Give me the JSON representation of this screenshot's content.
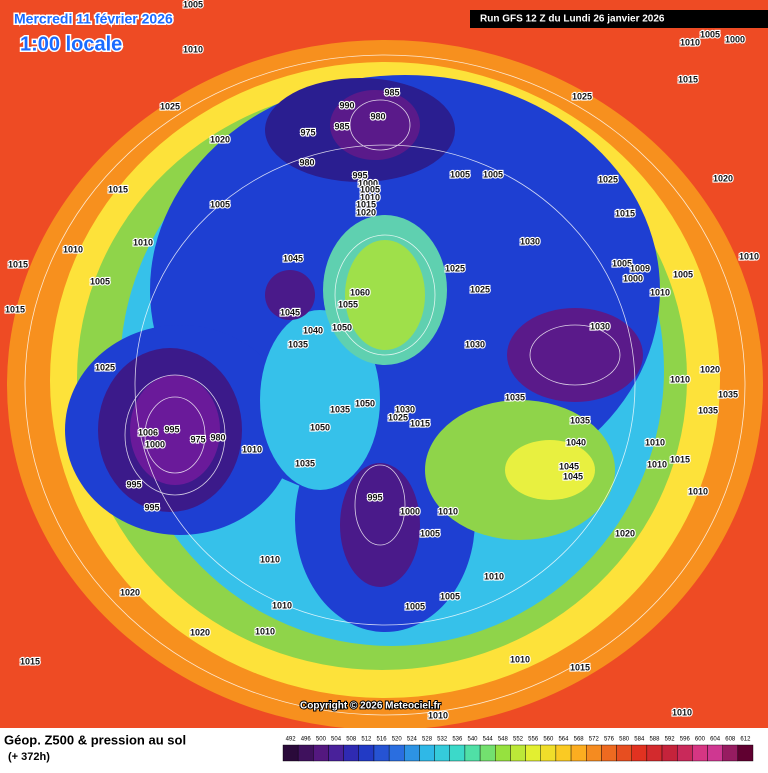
{
  "header": {
    "date": "Mercredi 11 février 2026",
    "time": "1:00 locale",
    "run": "Run GFS 12 Z du Lundi 26 janvier 2026"
  },
  "map": {
    "copyright": "Copyright © 2026 Meteociel.fr",
    "isobar_labels": [
      "1005",
      "1010",
      "1025",
      "1020",
      "1015",
      "1005",
      "1010",
      "1010",
      "1015",
      "1005",
      "1015",
      "1025",
      "990",
      "985",
      "975",
      "985",
      "980",
      "980",
      "995",
      "1000",
      "1005",
      "1010",
      "1015",
      "1020",
      "1045",
      "1045",
      "1055",
      "1060",
      "1050",
      "1040",
      "1035",
      "1025",
      "1005",
      "1005",
      "1025",
      "1015",
      "1030",
      "1025",
      "1025",
      "1030",
      "1030",
      "1005",
      "1009",
      "1000",
      "1005",
      "1010",
      "1035",
      "1035",
      "1040",
      "1045",
      "1045",
      "1010",
      "1005",
      "1000",
      "1015",
      "1020",
      "1010",
      "1010",
      "1020",
      "1035",
      "1035",
      "1010",
      "1010",
      "1015",
      "1010",
      "1020",
      "1006",
      "995",
      "1000",
      "975",
      "980",
      "995",
      "995",
      "1010",
      "1035",
      "1035",
      "1050",
      "1050",
      "1030",
      "1015",
      "1025",
      "995",
      "1000",
      "1010",
      "1005",
      "1010",
      "1010",
      "1020",
      "1010",
      "1005",
      "1005",
      "1020",
      "1010",
      "1015",
      "1010",
      "1015",
      "1010",
      "1010"
    ]
  },
  "legend": {
    "title": "Géop. Z500 & pression au sol",
    "lead": "(+ 372h)",
    "scale": [
      "492",
      "496",
      "500",
      "504",
      "508",
      "512",
      "516",
      "520",
      "524",
      "528",
      "532",
      "536",
      "540",
      "544",
      "548",
      "552",
      "556",
      "560",
      "564",
      "568",
      "572",
      "576",
      "580",
      "584",
      "588",
      "592",
      "596",
      "600",
      "604",
      "608",
      "612"
    ]
  }
}
